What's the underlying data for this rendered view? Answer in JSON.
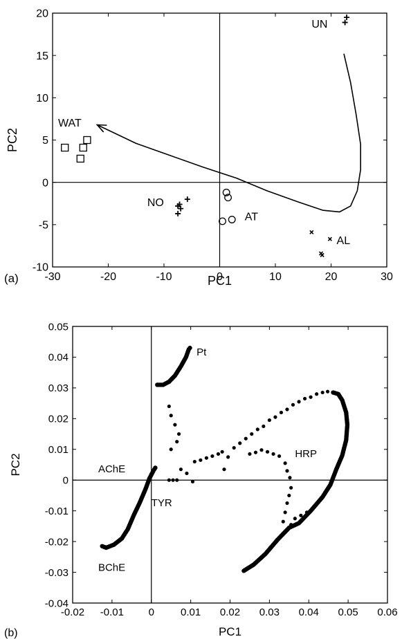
{
  "chart_data": [
    {
      "panel_label": "(a)",
      "type": "scatter",
      "xlabel": "PC1",
      "ylabel": "PC2",
      "xlim": [
        -30,
        30
      ],
      "ylim": [
        -10,
        20
      ],
      "xticks": [
        -30,
        -20,
        -10,
        0,
        10,
        20,
        30
      ],
      "yticks": [
        -10,
        -5,
        0,
        5,
        10,
        15,
        20
      ],
      "tick_labels_x": [
        "-30",
        "-20",
        "-10",
        "0",
        "10",
        "20",
        "30"
      ],
      "tick_labels_y": [
        "-10",
        "-5",
        "0",
        "5",
        "10",
        "15",
        "20"
      ],
      "zero_lines": true,
      "series": [
        {
          "marker": "square",
          "points": [
            [
              -27.8,
              4.1
            ],
            [
              -25,
              2.8
            ],
            [
              -24.5,
              4.1
            ],
            [
              -23.8,
              5.0
            ]
          ]
        },
        {
          "marker": "plus",
          "points": [
            [
              -7.5,
              -2.8
            ],
            [
              -7,
              -3.1
            ],
            [
              -7.5,
              -3.7
            ],
            [
              -5.8,
              -2.0
            ],
            [
              -7.2,
              -2.6
            ]
          ]
        },
        {
          "marker": "circle",
          "points": [
            [
              1.2,
              -1.2
            ],
            [
              1.5,
              -1.8
            ],
            [
              0.5,
              -4.6
            ],
            [
              2.2,
              -4.4
            ]
          ]
        },
        {
          "marker": "x",
          "points": [
            [
              16.5,
              -5.9
            ],
            [
              19.8,
              -6.7
            ],
            [
              18.2,
              -8.4
            ],
            [
              18.4,
              -8.6
            ]
          ]
        },
        {
          "marker": "plus",
          "points": [
            [
              22.8,
              19.5
            ],
            [
              22.5,
              18.9
            ]
          ]
        }
      ],
      "trajectory": [
        [
          22.3,
          15.2
        ],
        [
          23.5,
          11.8
        ],
        [
          24.5,
          8.0
        ],
        [
          25.3,
          4.5
        ],
        [
          25.3,
          1.5
        ],
        [
          24.7,
          -1.0
        ],
        [
          23.5,
          -2.8
        ],
        [
          21.5,
          -3.5
        ],
        [
          18.5,
          -3.3
        ],
        [
          14,
          -2.3
        ],
        [
          8.5,
          -1.0
        ],
        [
          3,
          0.5
        ],
        [
          -3,
          1.8
        ],
        [
          -9,
          3.2
        ],
        [
          -15,
          4.6
        ],
        [
          -22,
          6.8
        ]
      ],
      "annotations": [
        {
          "text": "UN",
          "x": 16.5,
          "y": 18.3
        },
        {
          "text": "WAT",
          "x": -29,
          "y": 6.6
        },
        {
          "text": "NO",
          "x": -13,
          "y": -2.8
        },
        {
          "text": "AT",
          "x": 4.5,
          "y": -4.5
        },
        {
          "text": "AL",
          "x": 21,
          "y": -7.3
        }
      ]
    },
    {
      "panel_label": "(b)",
      "type": "scatter",
      "xlabel": "PC1",
      "ylabel": "PC2",
      "xlim": [
        -0.02,
        0.06
      ],
      "ylim": [
        -0.04,
        0.05
      ],
      "xticks": [
        -0.02,
        -0.01,
        0,
        0.01,
        0.02,
        0.03,
        0.04,
        0.05,
        0.06
      ],
      "yticks": [
        -0.04,
        -0.03,
        -0.02,
        -0.01,
        0,
        0.01,
        0.02,
        0.03,
        0.04,
        0.05
      ],
      "tick_labels_x": [
        "-0.02",
        "-0.01",
        "0",
        "0.01",
        "0.02",
        "0.03",
        "0.04",
        "0.05",
        "0.06"
      ],
      "tick_labels_y": [
        "-0.04",
        "-0.03",
        "-0.02",
        "-0.01",
        "0",
        "0.01",
        "0.02",
        "0.03",
        "0.04",
        "0.05"
      ],
      "zero_lines": true,
      "curves": [
        {
          "name_ref": "TYR",
          "points": [
            [
              -0.0125,
              -0.0215
            ],
            [
              -0.0115,
              -0.022
            ],
            [
              -0.0095,
              -0.021
            ],
            [
              -0.0075,
              -0.019
            ],
            [
              -0.006,
              -0.016
            ],
            [
              -0.0045,
              -0.0115
            ],
            [
              -0.003,
              -0.0075
            ],
            [
              -0.0015,
              -0.003
            ],
            [
              -0.0005,
              0.0005
            ],
            [
              0.0005,
              0.003
            ],
            [
              0.001,
              0.004
            ]
          ]
        },
        {
          "name_ref": "Pt",
          "points": [
            [
              0.0015,
              0.031
            ],
            [
              0.003,
              0.031
            ],
            [
              0.0045,
              0.032
            ],
            [
              0.006,
              0.034
            ],
            [
              0.0075,
              0.037
            ],
            [
              0.0088,
              0.04
            ],
            [
              0.0095,
              0.0425
            ],
            [
              0.0098,
              0.043
            ]
          ]
        },
        {
          "name_ref": "HRP",
          "points": [
            [
              0.0235,
              -0.0295
            ],
            [
              0.026,
              -0.0275
            ],
            [
              0.029,
              -0.024
            ],
            [
              0.032,
              -0.0195
            ],
            [
              0.035,
              -0.0155
            ],
            [
              0.0375,
              -0.014
            ],
            [
              0.0405,
              -0.01
            ],
            [
              0.0435,
              -0.0055
            ],
            [
              0.0455,
              -0.0015
            ],
            [
              0.047,
              0.0035
            ],
            [
              0.0485,
              0.008
            ],
            [
              0.0495,
              0.013
            ],
            [
              0.0498,
              0.018
            ],
            [
              0.0495,
              0.022
            ],
            [
              0.0485,
              0.026
            ],
            [
              0.0475,
              0.028
            ],
            [
              0.0462,
              0.0285
            ]
          ]
        }
      ],
      "scatter_points": [
        [
          0.0045,
          0.024
        ],
        [
          0.005,
          0.021
        ],
        [
          0.006,
          0.018
        ],
        [
          0.007,
          0.015
        ],
        [
          0.0065,
          0.0125
        ],
        [
          0.005,
          0.01
        ],
        [
          0.0045,
          0.0
        ],
        [
          0.0055,
          0.0
        ],
        [
          0.0065,
          0.0
        ],
        [
          0.0075,
          0.0035
        ],
        [
          0.009,
          0.0022
        ],
        [
          0.0105,
          -0.0005
        ],
        [
          0.011,
          0.006
        ],
        [
          0.0125,
          0.0065
        ],
        [
          0.014,
          0.0072
        ],
        [
          0.0155,
          0.0078
        ],
        [
          0.017,
          0.0085
        ],
        [
          0.018,
          0.0092
        ],
        [
          0.0185,
          0.0035
        ],
        [
          0.0195,
          0.0075
        ],
        [
          0.021,
          0.0105
        ],
        [
          0.0225,
          0.012
        ],
        [
          0.024,
          0.0135
        ],
        [
          0.0255,
          0.015
        ],
        [
          0.027,
          0.0165
        ],
        [
          0.0285,
          0.0175
        ],
        [
          0.03,
          0.0195
        ],
        [
          0.0315,
          0.0205
        ],
        [
          0.033,
          0.022
        ],
        [
          0.0345,
          0.023
        ],
        [
          0.036,
          0.0245
        ],
        [
          0.0375,
          0.0255
        ],
        [
          0.039,
          0.0265
        ],
        [
          0.0405,
          0.027
        ],
        [
          0.042,
          0.028
        ],
        [
          0.0435,
          0.0285
        ],
        [
          0.0448,
          0.0288
        ],
        [
          0.025,
          0.0085
        ],
        [
          0.0265,
          0.009
        ],
        [
          0.028,
          0.0098
        ],
        [
          0.0295,
          0.0092
        ],
        [
          0.031,
          0.0085
        ],
        [
          0.0325,
          0.0078
        ],
        [
          0.034,
          0.0055
        ],
        [
          0.0345,
          0.003
        ],
        [
          0.0352,
          0.0008
        ],
        [
          0.0355,
          -0.0025
        ],
        [
          0.035,
          -0.005
        ],
        [
          0.0345,
          -0.0075
        ],
        [
          0.034,
          -0.0105
        ],
        [
          0.0335,
          -0.0135
        ],
        [
          0.0355,
          -0.0145
        ],
        [
          0.0365,
          -0.0125
        ],
        [
          0.038,
          -0.0115
        ],
        [
          0.0395,
          -0.0105
        ]
      ],
      "annotations": [
        {
          "text": "Pt",
          "x": 0.0115,
          "y": 0.0405
        },
        {
          "text": "HRP",
          "x": 0.0365,
          "y": 0.0075
        },
        {
          "text": "AChE",
          "x": -0.0135,
          "y": 0.0025
        },
        {
          "text": "TYR",
          "x": 0.0,
          "y": -0.0085
        },
        {
          "text": "BChE",
          "x": -0.0135,
          "y": -0.0295
        }
      ]
    }
  ]
}
